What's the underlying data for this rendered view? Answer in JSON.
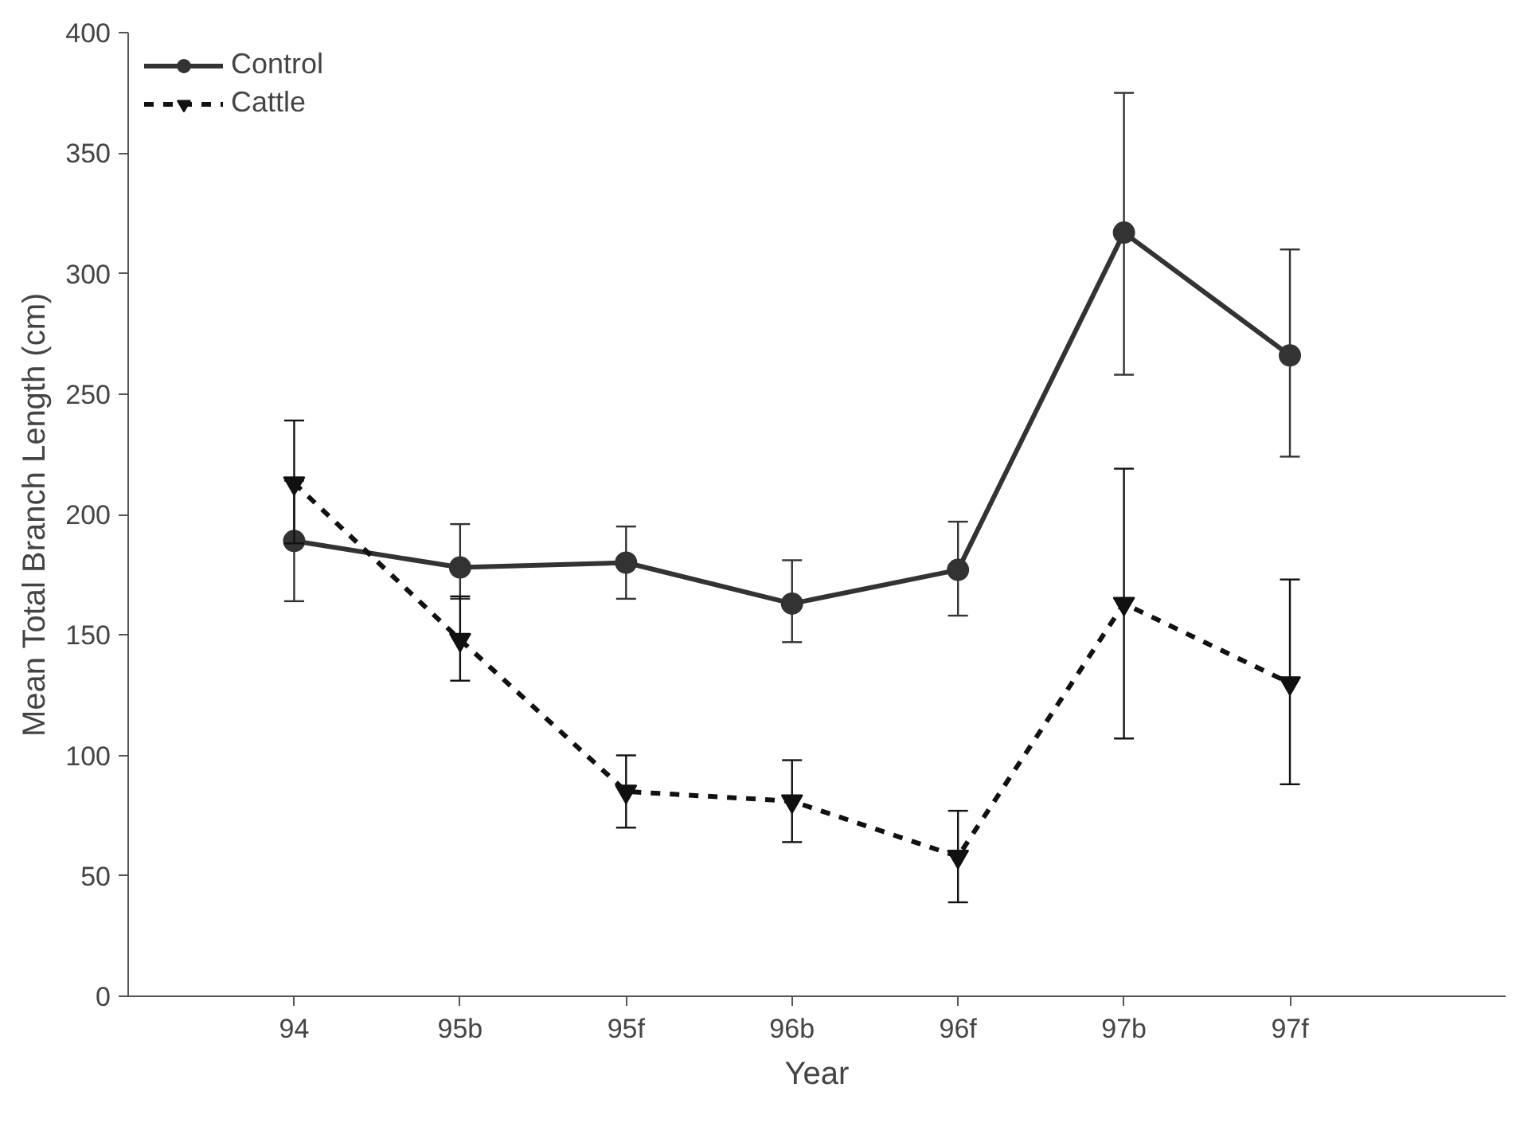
{
  "chart_data": {
    "type": "line",
    "xlabel": "Year",
    "ylabel": "Mean Total Branch Length (cm)",
    "categories": [
      "94",
      "95b",
      "95f",
      "96b",
      "96f",
      "97b",
      "97f"
    ],
    "series": [
      {
        "name": "Control",
        "color": "#333333",
        "marker": "circle",
        "line_style": "solid",
        "values": [
          189,
          178,
          180,
          163,
          177,
          317,
          266
        ],
        "errors": [
          25,
          [
            165,
            196
          ],
          [
            165,
            195
          ],
          [
            147,
            181
          ],
          [
            158,
            197
          ],
          [
            258,
            375
          ],
          [
            224,
            310
          ]
        ]
      },
      {
        "name": "Cattle",
        "color": "#111111",
        "marker": "triangle",
        "line_style": "dashed",
        "values": [
          213,
          148,
          85,
          81,
          58,
          163,
          130
        ],
        "errors": [
          [
            188,
            239
          ],
          [
            131,
            166
          ],
          [
            70,
            100
          ],
          [
            64,
            98
          ],
          [
            39,
            77
          ],
          [
            107,
            219
          ],
          [
            88,
            173
          ]
        ]
      }
    ],
    "ylim": [
      0,
      400
    ],
    "yticks": [
      0,
      50,
      100,
      150,
      200,
      250,
      300,
      350,
      400
    ],
    "grid": false,
    "legend": "top left"
  }
}
